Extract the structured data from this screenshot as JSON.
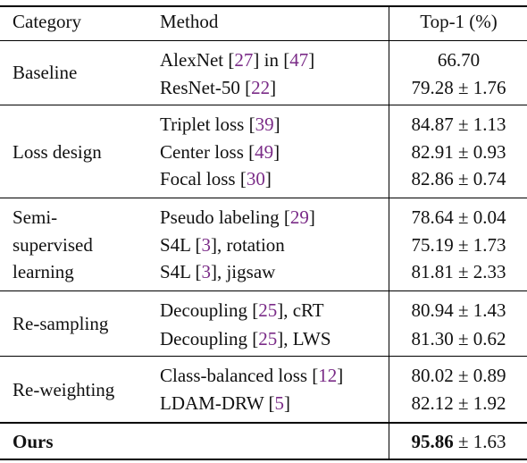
{
  "header": {
    "category": "Category",
    "method": "Method",
    "top1": "Top-1 (%)"
  },
  "groups": [
    {
      "category_lines": [
        "Baseline"
      ],
      "rows": [
        {
          "pre": "AlexNet [",
          "cite": "27",
          "mid": "] in [",
          "cite2": "47",
          "post": "]",
          "value": "66.70"
        },
        {
          "pre": "ResNet-50 [",
          "cite": "22",
          "post": "]",
          "value": "79.28 ± 1.76"
        }
      ]
    },
    {
      "category_lines": [
        "Loss design"
      ],
      "rows": [
        {
          "pre": "Triplet loss [",
          "cite": "39",
          "post": "]",
          "value": "84.87 ± 1.13"
        },
        {
          "pre": "Center loss [",
          "cite": "49",
          "post": "]",
          "value": "82.91 ± 0.93"
        },
        {
          "pre": "Focal loss [",
          "cite": "30",
          "post": "]",
          "value": "82.86 ± 0.74"
        }
      ]
    },
    {
      "category_lines": [
        "Semi-",
        "supervised",
        "learning"
      ],
      "rows": [
        {
          "pre": "Pseudo labeling [",
          "cite": "29",
          "post": "]",
          "value": "78.64 ± 0.04"
        },
        {
          "pre": "S4L [",
          "cite": "3",
          "post": "], rotation",
          "value": "75.19 ± 1.73"
        },
        {
          "pre": "S4L [",
          "cite": "3",
          "post": "], jigsaw",
          "value": "81.81 ± 2.33"
        }
      ]
    },
    {
      "category_lines": [
        "Re-sampling"
      ],
      "rows": [
        {
          "pre": "Decoupling [",
          "cite": "25",
          "post": "], cRT",
          "value": "80.94 ± 1.43"
        },
        {
          "pre": "Decoupling [",
          "cite": "25",
          "post": "], LWS",
          "value": "81.30 ± 0.62"
        }
      ]
    },
    {
      "category_lines": [
        "Re-weighting"
      ],
      "rows": [
        {
          "pre": "Class-balanced loss [",
          "cite": "12",
          "post": "]",
          "value": "80.02 ± 0.89"
        },
        {
          "pre": "LDAM-DRW [",
          "cite": "5",
          "post": "]",
          "value": "82.12 ± 1.92"
        }
      ]
    }
  ],
  "ours": {
    "category": "Ours",
    "value_bold": "95.86",
    "value_rest": " ± 1.63"
  },
  "colors": {
    "citation": "#7a2b87",
    "text": "#111111"
  }
}
